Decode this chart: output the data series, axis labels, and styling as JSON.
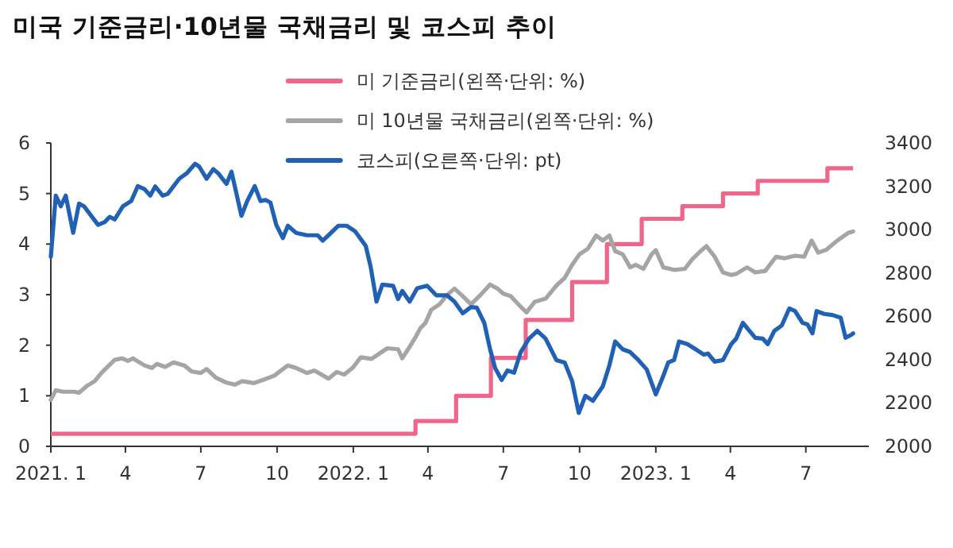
{
  "chart_data": {
    "type": "line",
    "title": "미국 기준금리·10년물 국채금리 및 코스피 추이",
    "xlim": [
      "2021-01-01",
      "2023-09-15"
    ],
    "xticks": [
      {
        "value": "2021-01-01",
        "label": "2021. 1"
      },
      {
        "value": "2021-04-01",
        "label": "4"
      },
      {
        "value": "2021-07-01",
        "label": "7"
      },
      {
        "value": "2021-10-01",
        "label": "10"
      },
      {
        "value": "2022-01-01",
        "label": "2022. 1"
      },
      {
        "value": "2022-04-01",
        "label": "4"
      },
      {
        "value": "2022-07-01",
        "label": "7"
      },
      {
        "value": "2022-10-01",
        "label": "10"
      },
      {
        "value": "2023-01-01",
        "label": "2023. 1"
      },
      {
        "value": "2023-04-01",
        "label": "4"
      },
      {
        "value": "2023-07-01",
        "label": "7"
      }
    ],
    "ylim": [
      0,
      6
    ],
    "yticks": [
      0,
      1,
      2,
      3,
      4,
      5,
      6
    ],
    "y2lim": [
      2000,
      3400
    ],
    "y2ticks": [
      2000,
      2200,
      2400,
      2600,
      2800,
      3000,
      3200,
      3400
    ],
    "legend": "top",
    "series": [
      {
        "name": "미 기준금리(왼쪽·단위: %)",
        "type": "step",
        "color": "#f0668a",
        "x": [
          "2021-01-01",
          "2022-03-17",
          "2022-05-05",
          "2022-06-16",
          "2022-07-28",
          "2022-09-22",
          "2022-11-03",
          "2022-12-15",
          "2023-02-02",
          "2023-03-23",
          "2023-05-04",
          "2023-07-27",
          "2023-08-27"
        ],
        "values": [
          0.25,
          0.5,
          1.0,
          1.75,
          2.5,
          3.25,
          4.0,
          4.5,
          4.75,
          5.0,
          5.25,
          5.5,
          5.5
        ]
      },
      {
        "name": "미 10년물 국채금리(왼쪽·단위: %)",
        "type": "line",
        "color": "#a5a5a5",
        "x": [
          "2021-01-01",
          "2021-01-07",
          "2021-01-16",
          "2021-01-29",
          "2021-02-04",
          "2021-02-14",
          "2021-02-23",
          "2021-03-03",
          "2021-03-09",
          "2021-03-19",
          "2021-03-28",
          "2021-04-04",
          "2021-04-10",
          "2021-04-24",
          "2021-05-03",
          "2021-05-09",
          "2021-05-19",
          "2021-05-29",
          "2021-06-11",
          "2021-06-20",
          "2021-07-01",
          "2021-07-08",
          "2021-07-19",
          "2021-08-01",
          "2021-08-11",
          "2021-08-20",
          "2021-09-03",
          "2021-09-15",
          "2021-09-28",
          "2021-10-04",
          "2021-10-14",
          "2021-10-24",
          "2021-11-06",
          "2021-11-15",
          "2021-12-02",
          "2021-12-12",
          "2021-12-21",
          "2021-12-31",
          "2022-01-10",
          "2022-01-23",
          "2022-02-01",
          "2022-02-11",
          "2022-02-24",
          "2022-03-01",
          "2022-03-10",
          "2022-03-16",
          "2022-03-23",
          "2022-03-29",
          "2022-04-05",
          "2022-04-15",
          "2022-04-24",
          "2022-05-03",
          "2022-05-13",
          "2022-05-23",
          "2022-06-02",
          "2022-06-15",
          "2022-06-24",
          "2022-07-01",
          "2022-07-10",
          "2022-07-19",
          "2022-07-29",
          "2022-08-08",
          "2022-08-21",
          "2022-09-03",
          "2022-09-13",
          "2022-09-22",
          "2022-10-01",
          "2022-10-11",
          "2022-10-21",
          "2022-10-29",
          "2022-11-06",
          "2022-11-13",
          "2022-11-22",
          "2022-12-01",
          "2022-12-08",
          "2022-12-17",
          "2022-12-27",
          "2023-01-01",
          "2023-01-10",
          "2023-01-23",
          "2023-02-05",
          "2023-02-14",
          "2023-02-24",
          "2023-03-03",
          "2023-03-13",
          "2023-03-23",
          "2023-04-02",
          "2023-04-08",
          "2023-04-21",
          "2023-05-01",
          "2023-05-13",
          "2023-05-26",
          "2023-06-05",
          "2023-06-18",
          "2023-06-29",
          "2023-07-08",
          "2023-07-16",
          "2023-07-26",
          "2023-08-08",
          "2023-08-21",
          "2023-08-27"
        ],
        "values": [
          0.92,
          1.11,
          1.08,
          1.08,
          1.06,
          1.2,
          1.29,
          1.45,
          1.55,
          1.71,
          1.74,
          1.69,
          1.74,
          1.6,
          1.55,
          1.63,
          1.57,
          1.66,
          1.6,
          1.48,
          1.45,
          1.53,
          1.36,
          1.26,
          1.22,
          1.29,
          1.25,
          1.32,
          1.4,
          1.48,
          1.6,
          1.55,
          1.45,
          1.5,
          1.34,
          1.47,
          1.42,
          1.55,
          1.76,
          1.73,
          1.83,
          1.94,
          1.92,
          1.74,
          1.97,
          2.13,
          2.34,
          2.44,
          2.7,
          2.81,
          2.99,
          3.12,
          2.97,
          2.81,
          2.97,
          3.2,
          3.12,
          3.02,
          2.97,
          2.81,
          2.65,
          2.86,
          2.92,
          3.18,
          3.33,
          3.59,
          3.8,
          3.91,
          4.17,
          4.07,
          4.17,
          3.86,
          3.8,
          3.54,
          3.59,
          3.51,
          3.8,
          3.88,
          3.54,
          3.49,
          3.51,
          3.7,
          3.86,
          3.96,
          3.75,
          3.44,
          3.39,
          3.41,
          3.54,
          3.44,
          3.47,
          3.75,
          3.72,
          3.77,
          3.75,
          4.07,
          3.83,
          3.89,
          4.07,
          4.22,
          4.25
        ]
      },
      {
        "name": "코스피(오른쪽·단위: pt)",
        "type": "line",
        "axis": "y2",
        "color": "#2161b5",
        "x": [
          "2021-01-01",
          "2021-01-07",
          "2021-01-13",
          "2021-01-19",
          "2021-01-28",
          "2021-02-04",
          "2021-02-10",
          "2021-02-27",
          "2021-03-07",
          "2021-03-13",
          "2021-03-19",
          "2021-03-29",
          "2021-04-08",
          "2021-04-16",
          "2021-04-24",
          "2021-05-01",
          "2021-05-07",
          "2021-05-16",
          "2021-05-22",
          "2021-06-05",
          "2021-06-14",
          "2021-06-24",
          "2021-06-29",
          "2021-07-08",
          "2021-07-16",
          "2021-07-22",
          "2021-08-01",
          "2021-08-07",
          "2021-08-19",
          "2021-08-26",
          "2021-09-04",
          "2021-09-11",
          "2021-09-17",
          "2021-09-23",
          "2021-09-30",
          "2021-10-08",
          "2021-10-14",
          "2021-10-24",
          "2021-11-06",
          "2021-11-19",
          "2021-11-25",
          "2021-12-05",
          "2021-12-14",
          "2021-12-24",
          "2022-01-03",
          "2022-01-16",
          "2022-01-22",
          "2022-01-29",
          "2022-02-05",
          "2022-02-18",
          "2022-02-24",
          "2022-03-01",
          "2022-03-10",
          "2022-03-19",
          "2022-03-31",
          "2022-04-11",
          "2022-04-24",
          "2022-05-03",
          "2022-05-13",
          "2022-05-23",
          "2022-05-30",
          "2022-06-08",
          "2022-06-15",
          "2022-06-21",
          "2022-06-29",
          "2022-07-06",
          "2022-07-14",
          "2022-07-22",
          "2022-08-01",
          "2022-08-11",
          "2022-08-21",
          "2022-09-03",
          "2022-09-13",
          "2022-09-22",
          "2022-09-30",
          "2022-10-08",
          "2022-10-17",
          "2022-10-29",
          "2022-11-06",
          "2022-11-13",
          "2022-11-22",
          "2022-12-01",
          "2022-12-11",
          "2022-12-21",
          "2023-01-01",
          "2023-01-10",
          "2023-01-16",
          "2023-01-23",
          "2023-01-29",
          "2023-02-08",
          "2023-02-18",
          "2023-02-28",
          "2023-03-05",
          "2023-03-13",
          "2023-03-23",
          "2023-04-02",
          "2023-04-08",
          "2023-04-16",
          "2023-04-24",
          "2023-05-01",
          "2023-05-10",
          "2023-05-16",
          "2023-05-24",
          "2023-06-02",
          "2023-06-11",
          "2023-06-18",
          "2023-06-27",
          "2023-07-03",
          "2023-07-09",
          "2023-07-14",
          "2023-07-23",
          "2023-08-02",
          "2023-08-12",
          "2023-08-18",
          "2023-08-24",
          "2023-08-27"
        ],
        "values": [
          2875,
          3157,
          3108,
          3157,
          2985,
          3120,
          3108,
          3022,
          3035,
          3059,
          3047,
          3108,
          3132,
          3201,
          3187,
          3157,
          3199,
          3157,
          3165,
          3235,
          3260,
          3304,
          3291,
          3235,
          3279,
          3260,
          3211,
          3267,
          3064,
          3132,
          3201,
          3132,
          3137,
          3125,
          3022,
          2961,
          3018,
          2985,
          2974,
          2974,
          2949,
          2985,
          3018,
          3018,
          2993,
          2925,
          2827,
          2668,
          2746,
          2741,
          2680,
          2717,
          2668,
          2729,
          2741,
          2697,
          2697,
          2668,
          2614,
          2643,
          2640,
          2570,
          2448,
          2362,
          2306,
          2350,
          2340,
          2435,
          2497,
          2533,
          2497,
          2398,
          2387,
          2301,
          2154,
          2233,
          2210,
          2277,
          2374,
          2484,
          2448,
          2435,
          2398,
          2355,
          2240,
          2325,
          2387,
          2398,
          2484,
          2472,
          2448,
          2423,
          2428,
          2391,
          2398,
          2472,
          2497,
          2570,
          2533,
          2501,
          2497,
          2472,
          2533,
          2558,
          2636,
          2624,
          2570,
          2563,
          2521,
          2624,
          2611,
          2606,
          2594,
          2501,
          2513,
          2521
        ]
      }
    ]
  }
}
